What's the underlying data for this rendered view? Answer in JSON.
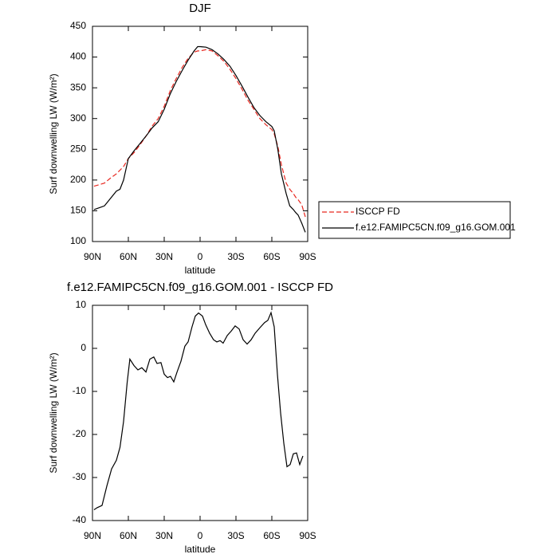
{
  "chart_data": [
    {
      "type": "line",
      "title": "DJF",
      "xlabel": "latitude",
      "ylabel": "Surf downwelling LW (W/m²)",
      "x": [
        88.7,
        80,
        75,
        70,
        67,
        64,
        60,
        55,
        50,
        45,
        40,
        35,
        30,
        25,
        20,
        15,
        10,
        5,
        2,
        0,
        -5,
        -10,
        -15,
        -20,
        -25,
        -30,
        -35,
        -40,
        -45,
        -50,
        -55,
        -60,
        -62,
        -65,
        -68,
        -72,
        -75,
        -78,
        -80,
        -82,
        -85,
        -88
      ],
      "series": [
        {
          "name": "ISCCP FD",
          "color": "#e8271f",
          "linestyle": "dashed",
          "values": [
            190,
            195,
            203,
            210,
            216,
            222,
            235,
            245,
            258,
            272,
            288,
            300,
            320,
            345,
            365,
            383,
            398,
            408,
            410,
            410,
            412,
            410,
            402,
            393,
            380,
            365,
            348,
            330,
            315,
            300,
            290,
            282,
            275,
            255,
            225,
            195,
            185,
            178,
            172,
            168,
            160,
            140
          ]
        },
        {
          "name": "f.e12.FAMIPC5CN.f09_g16.GOM.001",
          "color": "#000000",
          "linestyle": "solid",
          "values": [
            152,
            158,
            170,
            182,
            185,
            200,
            235,
            248,
            260,
            272,
            285,
            295,
            315,
            340,
            360,
            378,
            395,
            410,
            417,
            417,
            416,
            412,
            405,
            396,
            385,
            370,
            353,
            335,
            318,
            305,
            295,
            287,
            280,
            250,
            210,
            178,
            158,
            152,
            147,
            143,
            130,
            115
          ]
        }
      ],
      "xlim": [
        90,
        -90
      ],
      "xticks": [
        {
          "value": 90,
          "label": "90N"
        },
        {
          "value": 60,
          "label": "60N"
        },
        {
          "value": 30,
          "label": "30N"
        },
        0,
        {
          "value": -30,
          "label": "30S"
        },
        {
          "value": -60,
          "label": "60S"
        },
        {
          "value": -90,
          "label": "90S"
        }
      ],
      "ylim": [
        100,
        450
      ],
      "yticks": [
        100,
        150,
        200,
        250,
        300,
        350,
        400,
        450
      ],
      "legend": "outside-right"
    },
    {
      "type": "line",
      "title": "f.e12.FAMIPC5CN.f09_g16.GOM.001 - ISCCP FD",
      "xlabel": "latitude",
      "ylabel": "Surf downwelling LW (W/m²)",
      "x": [
        88.7,
        86,
        82,
        78,
        74,
        70,
        67,
        64,
        61,
        58.7,
        55.3,
        52,
        48.7,
        45.3,
        42,
        38.7,
        36,
        32.7,
        30,
        27.3,
        24.7,
        22,
        19.3,
        16,
        12.7,
        10,
        6.7,
        4,
        1.3,
        -2,
        -4.7,
        -8,
        -11.3,
        -14,
        -16.7,
        -19.3,
        -22.7,
        -26,
        -29.3,
        -32.7,
        -36,
        -39.3,
        -42.7,
        -46,
        -50,
        -54,
        -56.7,
        -59.3,
        -62,
        -64.7,
        -67.3,
        -70,
        -72.7,
        -75.3,
        -78,
        -80.7,
        -83.3,
        -86
      ],
      "values": [
        -37.5,
        -37,
        -36.5,
        -32,
        -28,
        -26,
        -23,
        -17,
        -8,
        -2.5,
        -4,
        -5,
        -4.5,
        -5.5,
        -2.5,
        -2,
        -3.5,
        -3.3,
        -6,
        -6.8,
        -6.5,
        -7.8,
        -5.5,
        -3,
        0.5,
        1.5,
        5,
        7.5,
        8.2,
        7.5,
        5.5,
        3.5,
        2,
        1.5,
        1.8,
        1.2,
        3,
        4,
        5.2,
        4.5,
        2,
        1,
        2,
        3.5,
        4.8,
        6,
        6.5,
        8.3,
        5,
        -6,
        -15,
        -22,
        -27.5,
        -27,
        -24.5,
        -24.3,
        -27,
        -25
      ],
      "color": "#000000",
      "xlim": [
        90,
        -90
      ],
      "xticks": [
        {
          "value": 90,
          "label": "90N"
        },
        {
          "value": 60,
          "label": "60N"
        },
        {
          "value": 30,
          "label": "30N"
        },
        0,
        {
          "value": -30,
          "label": "30S"
        },
        {
          "value": -60,
          "label": "60S"
        },
        {
          "value": -90,
          "label": "90S"
        }
      ],
      "ylim": [
        -40,
        10
      ],
      "yticks": [
        -40,
        -30,
        -20,
        -10,
        0,
        10
      ]
    }
  ]
}
